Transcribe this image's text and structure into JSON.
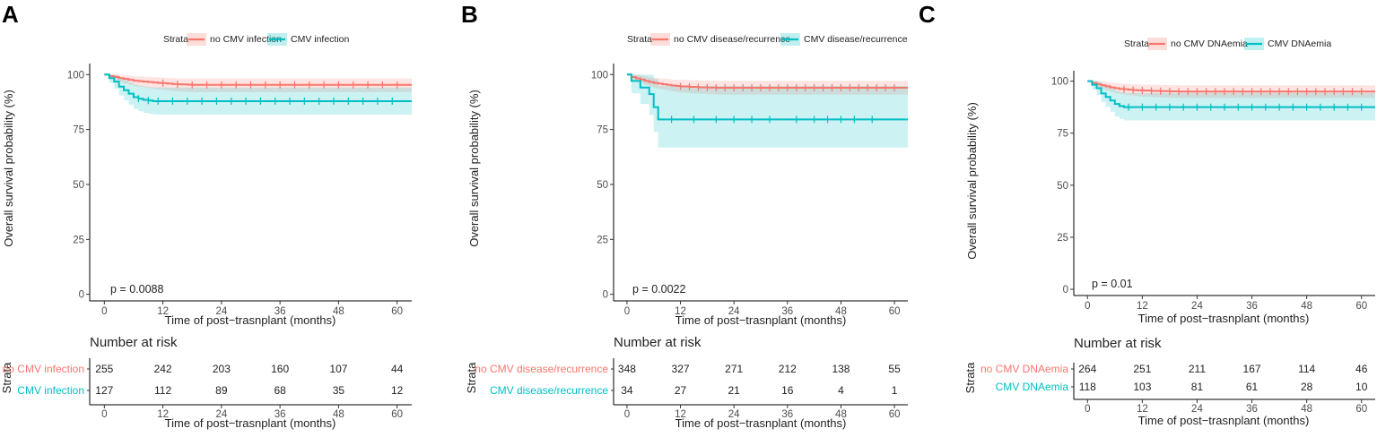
{
  "colors": {
    "no_event": "#F8766D",
    "event": "#00BFC4",
    "no_band": "#F8766D",
    "event_band": "#00BFC4"
  },
  "chart_data": [
    {
      "type": "line",
      "panel": "A",
      "legend_title": "Strata",
      "legend_labels": [
        "no CMV infection",
        "CMV infection"
      ],
      "pvalue": "p = 0.0088",
      "ylabel": "Overall survival probability (%)",
      "xlabel": "Time of post−trasnplant (months)",
      "xticks": [
        "0",
        "12",
        "24",
        "36",
        "48",
        "60"
      ],
      "yticks": [
        "0",
        "25",
        "50",
        "75",
        "100"
      ],
      "xlim": [
        -3,
        63
      ],
      "ylim": [
        -3,
        105
      ],
      "series": [
        {
          "name": "no CMV infection",
          "x": [
            0,
            1,
            2,
            3,
            4,
            5,
            6,
            7,
            8,
            9,
            10,
            11,
            12,
            13,
            14,
            15,
            16,
            17,
            18,
            63
          ],
          "y": [
            100,
            99.3,
            98.9,
            98.4,
            98.0,
            97.6,
            97.2,
            97.0,
            96.8,
            96.6,
            96.4,
            96.2,
            96.1,
            95.9,
            95.7,
            95.6,
            95.5,
            95.4,
            95.3,
            95.3
          ],
          "lower": [
            100,
            98.3,
            97.4,
            96.6,
            95.9,
            95.3,
            94.7,
            94.4,
            94.1,
            93.8,
            93.5,
            93.2,
            93.0,
            92.7,
            92.5,
            92.3,
            92.2,
            92.1,
            92.0,
            92.0
          ],
          "upper": [
            100,
            100,
            100,
            99.9,
            99.7,
            99.4,
            99.2,
            99.1,
            99.0,
            98.9,
            98.8,
            98.7,
            98.6,
            98.5,
            98.4,
            98.3,
            98.3,
            98.2,
            98.2,
            98.2
          ],
          "censor": [
            12,
            15,
            18,
            21,
            24,
            27,
            30,
            33,
            36,
            39,
            42,
            45,
            48,
            51,
            54,
            57,
            60
          ]
        },
        {
          "name": "CMV infection",
          "x": [
            0,
            1,
            2,
            3,
            4,
            5,
            6,
            7,
            8,
            9,
            10,
            63
          ],
          "y": [
            100,
            98.4,
            96.8,
            94.5,
            92.9,
            91.3,
            89.7,
            89.0,
            88.5,
            88.2,
            87.9,
            87.9
          ],
          "lower": [
            100,
            96.2,
            93.6,
            90.5,
            88.3,
            86.3,
            84.2,
            83.3,
            82.6,
            82.2,
            81.8,
            81.8
          ],
          "upper": [
            100,
            100,
            99.9,
            98.4,
            97.4,
            96.4,
            95.4,
            94.9,
            94.5,
            94.3,
            94.1,
            94.1
          ],
          "censor": [
            7,
            9,
            11,
            14,
            17,
            20,
            23,
            26,
            29,
            32,
            35,
            38,
            41,
            44,
            47,
            50,
            53,
            56,
            59
          ]
        }
      ],
      "risk": {
        "title": "Number at risk",
        "strata_label": "Strata",
        "rows": [
          {
            "label": "no CMV infection",
            "values": [
              "255",
              "242",
              "203",
              "160",
              "107",
              "44"
            ]
          },
          {
            "label": "CMV infection",
            "values": [
              "127",
              "112",
              "89",
              "68",
              "35",
              "12"
            ]
          }
        ],
        "xlabel": "Time of post−trasnplant (months)"
      }
    },
    {
      "type": "line",
      "panel": "B",
      "legend_title": "Strata",
      "legend_labels": [
        "no CMV disease/recurrence",
        "CMV disease/recurrence"
      ],
      "pvalue": "p = 0.0022",
      "ylabel": "Overall survival probability (%)",
      "xlabel": "Time of post−trasnplant (months)",
      "xticks": [
        "0",
        "12",
        "24",
        "36",
        "48",
        "60"
      ],
      "yticks": [
        "0",
        "25",
        "50",
        "75",
        "100"
      ],
      "xlim": [
        -3,
        63
      ],
      "ylim": [
        -3,
        105
      ],
      "series": [
        {
          "name": "no CMV disease/recurrence",
          "x": [
            0,
            1,
            2,
            3,
            4,
            5,
            6,
            7,
            8,
            9,
            10,
            11,
            12,
            14,
            16,
            18,
            20,
            63
          ],
          "y": [
            100,
            98.9,
            98.3,
            97.7,
            97.1,
            96.6,
            96.2,
            95.9,
            95.6,
            95.3,
            95.0,
            94.8,
            94.6,
            94.4,
            94.2,
            94.1,
            94.0,
            94.0
          ],
          "lower": [
            100,
            97.8,
            96.9,
            96.0,
            95.2,
            94.5,
            93.9,
            93.5,
            93.1,
            92.7,
            92.3,
            92.0,
            91.7,
            91.4,
            91.2,
            91.0,
            90.9,
            90.9
          ],
          "upper": [
            100,
            100,
            99.8,
            99.5,
            99.1,
            98.8,
            98.5,
            98.3,
            98.1,
            97.9,
            97.7,
            97.6,
            97.5,
            97.4,
            97.3,
            97.2,
            97.1,
            97.1
          ],
          "censor": [
            12,
            14,
            16,
            18,
            20,
            22,
            24,
            26,
            28,
            30,
            32,
            34,
            36,
            38,
            40,
            42,
            44,
            46,
            48,
            50,
            52,
            54,
            56,
            58,
            60
          ]
        },
        {
          "name": "CMV disease/recurrence",
          "x": [
            0,
            1,
            2,
            3,
            5,
            6,
            7,
            63
          ],
          "y": [
            100,
            97.1,
            97.1,
            94.1,
            91.1,
            85.2,
            79.6,
            79.6
          ],
          "lower": [
            100,
            91.5,
            91.5,
            86.6,
            81.6,
            74.0,
            66.8,
            66.8
          ],
          "upper": [
            100,
            100,
            100,
            100,
            100,
            98.0,
            94.8,
            94.8
          ],
          "censor": [
            10,
            15,
            20,
            24,
            28,
            32,
            38,
            42,
            45,
            48,
            51,
            55
          ]
        }
      ],
      "risk": {
        "title": "Number at risk",
        "strata_label": "Strata",
        "rows": [
          {
            "label": "no CMV disease/recurrence",
            "values": [
              "348",
              "327",
              "271",
              "212",
              "138",
              "55"
            ]
          },
          {
            "label": "CMV disease/recurrence",
            "values": [
              "34",
              "27",
              "21",
              "16",
              "4",
              "1"
            ]
          }
        ],
        "xlabel": "Time of post−trasnplant (months)"
      }
    },
    {
      "type": "line",
      "panel": "C",
      "legend_title": "Strata",
      "legend_labels": [
        "no CMV DNAemia",
        "CMV DNAemia"
      ],
      "pvalue": "p = 0.01",
      "ylabel": "Overall survival probability (%)",
      "xlabel": "Time of post−trasnplant (months)",
      "xticks": [
        "0",
        "12",
        "24",
        "36",
        "48",
        "60"
      ],
      "yticks": [
        "0",
        "25",
        "50",
        "75",
        "100"
      ],
      "xlim": [
        -3,
        63
      ],
      "ylim": [
        -3,
        105
      ],
      "series": [
        {
          "name": "no CMV DNAemia",
          "x": [
            0,
            1,
            2,
            3,
            4,
            5,
            6,
            7,
            8,
            9,
            10,
            11,
            12,
            14,
            16,
            18,
            20,
            63
          ],
          "y": [
            100,
            99.2,
            98.5,
            98.0,
            97.5,
            97.0,
            96.6,
            96.3,
            96.1,
            95.9,
            95.7,
            95.6,
            95.5,
            95.3,
            95.2,
            95.1,
            95.0,
            95.0
          ],
          "lower": [
            100,
            98.1,
            97.0,
            96.2,
            95.5,
            94.8,
            94.2,
            93.8,
            93.5,
            93.2,
            92.9,
            92.7,
            92.5,
            92.3,
            92.1,
            92.0,
            91.9,
            91.9
          ],
          "upper": [
            100,
            100,
            100,
            99.8,
            99.5,
            99.2,
            99.0,
            98.8,
            98.7,
            98.6,
            98.5,
            98.4,
            98.3,
            98.2,
            98.1,
            98.1,
            98.0,
            98.0
          ],
          "censor": [
            8,
            10,
            12,
            14,
            16,
            18,
            20,
            22,
            24,
            26,
            28,
            30,
            32,
            34,
            36,
            38,
            40,
            42,
            44,
            46,
            48,
            50,
            52,
            54,
            56,
            58,
            60
          ]
        },
        {
          "name": "CMV DNAemia",
          "x": [
            0,
            1,
            2,
            3,
            4,
            5,
            6,
            7,
            8,
            63
          ],
          "y": [
            100,
            98.3,
            96.6,
            94.1,
            92.4,
            90.7,
            89.0,
            88.0,
            87.5,
            87.5
          ],
          "lower": [
            100,
            96.0,
            93.4,
            90.0,
            87.6,
            85.3,
            83.0,
            81.8,
            81.2,
            81.2
          ],
          "upper": [
            100,
            100,
            99.9,
            98.4,
            97.4,
            96.4,
            95.4,
            94.7,
            94.3,
            94.3
          ],
          "censor": [
            9,
            12,
            15,
            18,
            21,
            24,
            27,
            30,
            33,
            36,
            39,
            42,
            45,
            48,
            51,
            54,
            57,
            60
          ]
        }
      ],
      "risk": {
        "title": "Number at risk",
        "strata_label": "Strata",
        "rows": [
          {
            "label": "no CMV DNAemia",
            "values": [
              "264",
              "251",
              "211",
              "167",
              "114",
              "46"
            ]
          },
          {
            "label": "CMV DNAemia",
            "values": [
              "118",
              "103",
              "81",
              "61",
              "28",
              "10"
            ]
          }
        ],
        "xlabel": "Time of post−trasnplant (months)"
      }
    }
  ]
}
